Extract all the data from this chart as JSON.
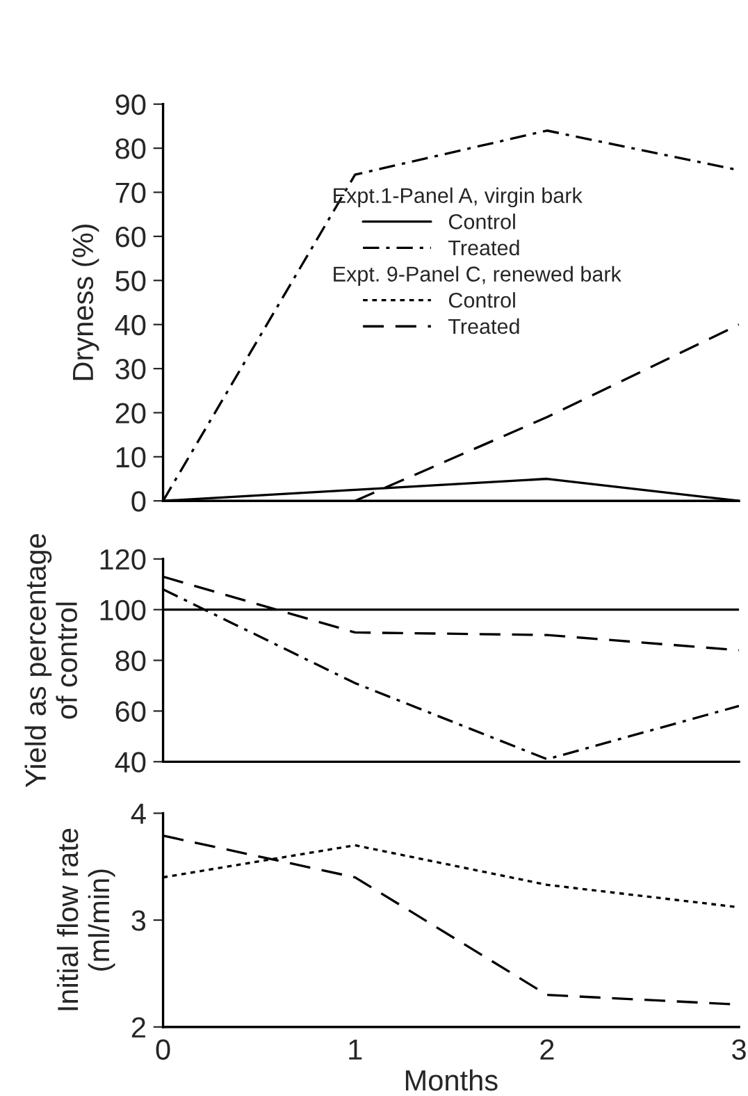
{
  "chart_data": [
    {
      "type": "line",
      "ylabel": "Dryness (%)",
      "x": [
        0,
        1,
        2,
        3
      ],
      "xlim": [
        0,
        3
      ],
      "xticks": [
        0,
        1,
        2,
        3
      ],
      "ylim": [
        0,
        90
      ],
      "yticks": [
        0,
        10,
        20,
        30,
        40,
        50,
        60,
        70,
        80,
        90
      ],
      "tick_labels": "y",
      "grid": false,
      "legend": "right",
      "marker": "none",
      "annotations": [
        "Expt.1-Panel A, virgin bark",
        "Expt. 9-Panel C, renewed bark"
      ],
      "series": [
        {
          "name": "Control",
          "color": "#000000",
          "line_style": "solid",
          "values": [
            0,
            2.5,
            5,
            0
          ]
        },
        {
          "name": "Treated",
          "color": "#000000",
          "line_style": "dashdot",
          "values": [
            0,
            74,
            84,
            75
          ]
        },
        {
          "name": "Control",
          "color": "#000000",
          "line_style": "dotted",
          "values": [
            null,
            null,
            null,
            null
          ]
        },
        {
          "name": "Treated",
          "color": "#000000",
          "line_style": "dashed",
          "values": [
            null,
            0,
            19,
            40
          ]
        }
      ]
    },
    {
      "type": "line",
      "ylabel": "Yield as percentage\nof control",
      "x": [
        0,
        1,
        2,
        3
      ],
      "xlim": [
        0,
        3
      ],
      "xticks": [
        0,
        1,
        2,
        3
      ],
      "ylim": [
        40,
        120
      ],
      "yticks": [
        40,
        60,
        80,
        100,
        120
      ],
      "tick_labels": "y",
      "grid": false,
      "marker": "none",
      "series": [
        {
          "color": "#000000",
          "line_style": "solid",
          "values": [
            100,
            100,
            100,
            100
          ]
        },
        {
          "color": "#000000",
          "line_style": "dashdot",
          "values": [
            108,
            71,
            41,
            62
          ]
        },
        {
          "color": "#000000",
          "line_style": "dashed",
          "values": [
            113,
            91,
            90,
            84
          ]
        }
      ]
    },
    {
      "type": "line",
      "ylabel": "Initial flow rate\n(ml/min)",
      "xlabel": "Months",
      "x": [
        0,
        1,
        2,
        3
      ],
      "xlim": [
        0,
        3
      ],
      "xticks": [
        0,
        1,
        2,
        3
      ],
      "ylim": [
        2,
        4
      ],
      "yticks": [
        2,
        3,
        4
      ],
      "grid": false,
      "marker": "none",
      "series": [
        {
          "color": "#000000",
          "line_style": "dotted",
          "values": [
            3.4,
            3.7,
            3.33,
            3.12
          ]
        },
        {
          "color": "#000000",
          "line_style": "dashed",
          "values": [
            3.79,
            3.4,
            2.3,
            2.21
          ]
        }
      ]
    }
  ]
}
